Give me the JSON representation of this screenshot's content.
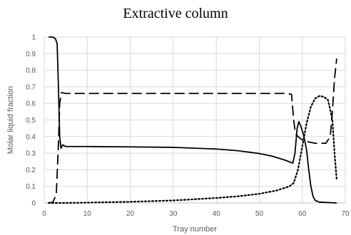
{
  "chart_data": {
    "type": "line",
    "title": "Extractive column",
    "xlabel": "Tray number",
    "ylabel": "Molar liquid fraction",
    "xlim": [
      0,
      70
    ],
    "ylim": [
      0,
      1
    ],
    "x_ticks": [
      0,
      10,
      20,
      30,
      40,
      50,
      60,
      70
    ],
    "y_ticks": [
      0,
      0.1,
      0.2,
      0.3,
      0.4,
      0.5,
      0.6,
      0.7,
      0.8,
      0.9,
      1
    ],
    "grid": true,
    "legend": "none",
    "series": [
      {
        "style": "solid",
        "color": "#000000",
        "points": [
          [
            1,
            1.0
          ],
          [
            2,
            1.0
          ],
          [
            2.6,
            0.99
          ],
          [
            3.0,
            0.96
          ],
          [
            3.3,
            0.7
          ],
          [
            3.6,
            0.4
          ],
          [
            3.9,
            0.33
          ],
          [
            4.3,
            0.35
          ],
          [
            5,
            0.34
          ],
          [
            10,
            0.34
          ],
          [
            20,
            0.338
          ],
          [
            30,
            0.335
          ],
          [
            40,
            0.325
          ],
          [
            45,
            0.315
          ],
          [
            50,
            0.298
          ],
          [
            53,
            0.282
          ],
          [
            56,
            0.258
          ],
          [
            57.8,
            0.24
          ],
          [
            58.3,
            0.3
          ],
          [
            58.8,
            0.45
          ],
          [
            59.2,
            0.49
          ],
          [
            59.7,
            0.46
          ],
          [
            60.3,
            0.41
          ],
          [
            61,
            0.32
          ],
          [
            61.5,
            0.2
          ],
          [
            62,
            0.1
          ],
          [
            62.5,
            0.04
          ],
          [
            63,
            0.015
          ],
          [
            64,
            0.005
          ],
          [
            68,
            0.0
          ]
        ]
      },
      {
        "style": "dashed",
        "color": "#000000",
        "points": [
          [
            1,
            0.0
          ],
          [
            2,
            0.005
          ],
          [
            2.8,
            0.05
          ],
          [
            3.3,
            0.35
          ],
          [
            3.6,
            0.6
          ],
          [
            4,
            0.665
          ],
          [
            5,
            0.66
          ],
          [
            10,
            0.66
          ],
          [
            20,
            0.66
          ],
          [
            30,
            0.66
          ],
          [
            40,
            0.66
          ],
          [
            50,
            0.66
          ],
          [
            56,
            0.66
          ],
          [
            57.5,
            0.655
          ],
          [
            58,
            0.5
          ],
          [
            58.4,
            0.42
          ],
          [
            59,
            0.4
          ],
          [
            60,
            0.38
          ],
          [
            61,
            0.37
          ],
          [
            62,
            0.365
          ],
          [
            63,
            0.36
          ],
          [
            64,
            0.36
          ],
          [
            65.5,
            0.36
          ],
          [
            66.5,
            0.4
          ],
          [
            67,
            0.55
          ],
          [
            67.5,
            0.75
          ],
          [
            68,
            0.87
          ]
        ]
      },
      {
        "style": "dotted",
        "color": "#000000",
        "points": [
          [
            1,
            0.0
          ],
          [
            3,
            0.0
          ],
          [
            5,
            0.0
          ],
          [
            10,
            0.002
          ],
          [
            20,
            0.007
          ],
          [
            30,
            0.015
          ],
          [
            40,
            0.03
          ],
          [
            45,
            0.04
          ],
          [
            50,
            0.055
          ],
          [
            54,
            0.075
          ],
          [
            57,
            0.1
          ],
          [
            58,
            0.12
          ],
          [
            59,
            0.2
          ],
          [
            60,
            0.34
          ],
          [
            61,
            0.48
          ],
          [
            62,
            0.58
          ],
          [
            63,
            0.63
          ],
          [
            64,
            0.645
          ],
          [
            65,
            0.64
          ],
          [
            66,
            0.62
          ],
          [
            67,
            0.5
          ],
          [
            67.5,
            0.3
          ],
          [
            68,
            0.14
          ]
        ]
      }
    ]
  }
}
